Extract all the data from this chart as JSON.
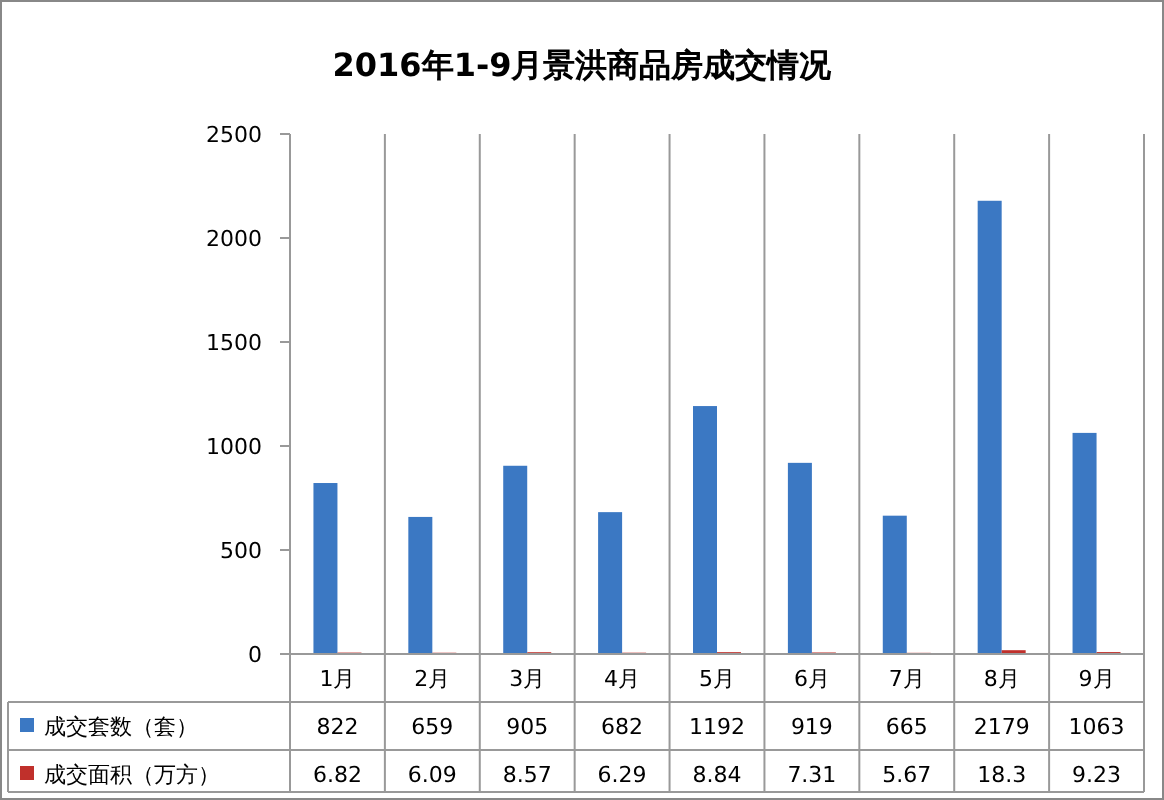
{
  "chart_data": {
    "type": "bar",
    "title": "2016年1-9月景洪商品房成交情况",
    "categories": [
      "1月",
      "2月",
      "3月",
      "4月",
      "5月",
      "6月",
      "7月",
      "8月",
      "9月"
    ],
    "series": [
      {
        "name": "成交套数（套）",
        "color": "#3b78c3",
        "values": [
          822,
          659,
          905,
          682,
          1192,
          919,
          665,
          2179,
          1063
        ]
      },
      {
        "name": "成交面积（万方）",
        "color": "#c0302b",
        "values": [
          6.82,
          6.09,
          8.57,
          6.29,
          8.84,
          7.31,
          5.67,
          18.3,
          9.23
        ]
      }
    ],
    "ylim": [
      0,
      2500
    ],
    "yticks": [
      0,
      500,
      1000,
      1500,
      2000,
      2500
    ],
    "grid": "x",
    "data_labels": true,
    "legend": "bottom"
  }
}
